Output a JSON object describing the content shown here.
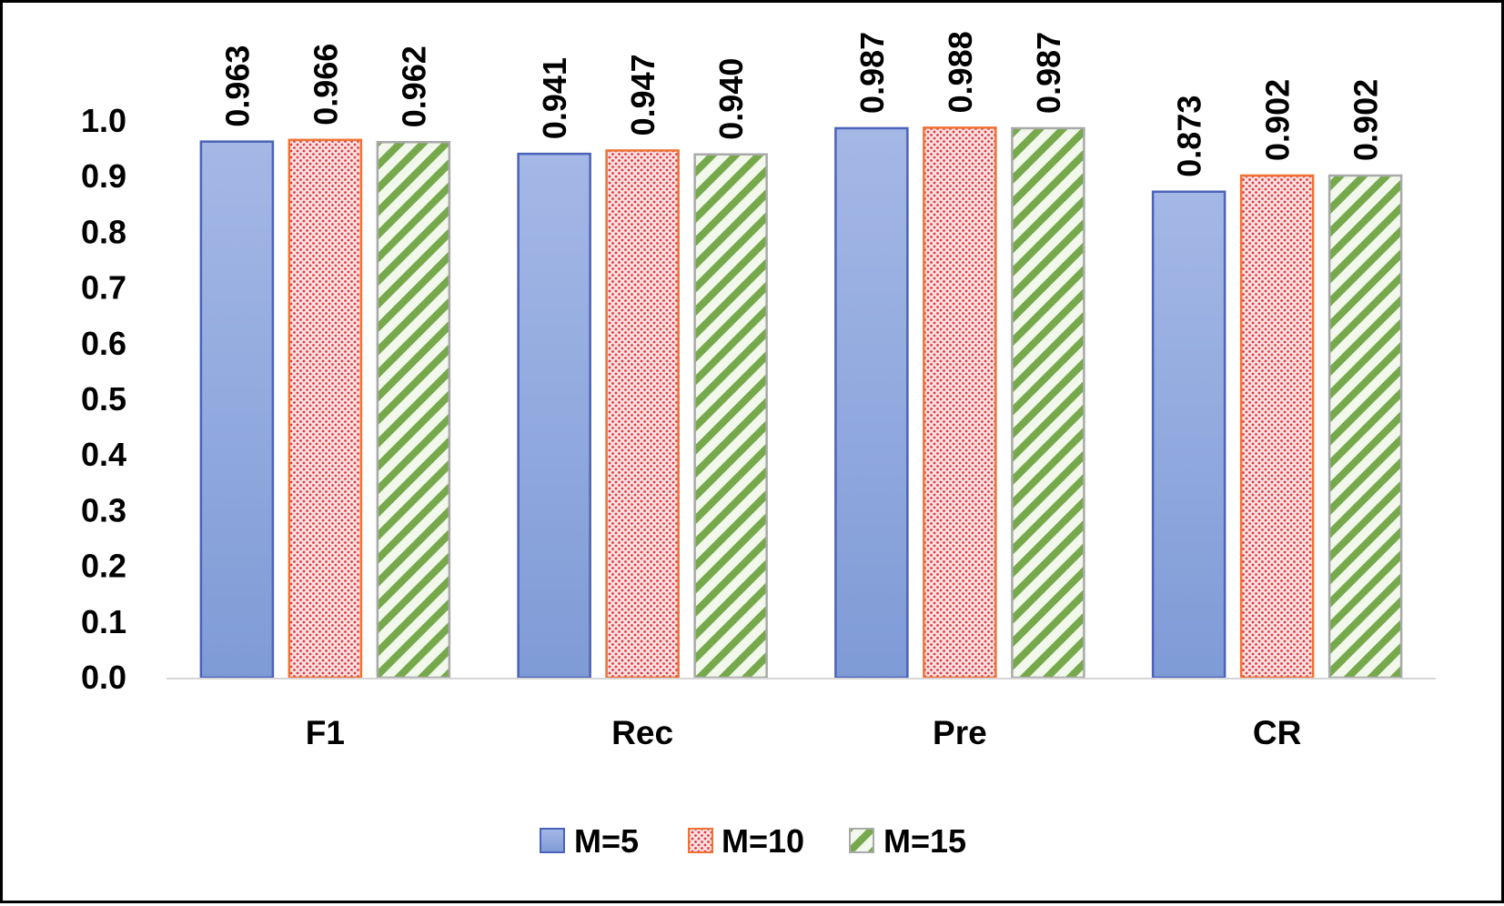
{
  "chart_data": {
    "type": "bar",
    "categories": [
      "F1",
      "Rec",
      "Pre",
      "CR"
    ],
    "series": [
      {
        "name": "M=5",
        "values": [
          0.963,
          0.941,
          0.987,
          0.873
        ],
        "pattern": "solid"
      },
      {
        "name": "M=10",
        "values": [
          0.966,
          0.947,
          0.988,
          0.902
        ],
        "pattern": "dots"
      },
      {
        "name": "M=15",
        "values": [
          0.962,
          0.94,
          0.987,
          0.902
        ],
        "pattern": "diagonal-stripes"
      }
    ],
    "data_labels": [
      [
        "0.963",
        "0.941",
        "0.987",
        "0.873"
      ],
      [
        "0.966",
        "0.947",
        "0.988",
        "0.902"
      ],
      [
        "0.962",
        "0.940",
        "0.987",
        "0.902"
      ]
    ],
    "y_ticks": [
      0.0,
      0.1,
      0.2,
      0.3,
      0.4,
      0.5,
      0.6,
      0.7,
      0.8,
      0.9,
      1.0
    ],
    "y_tick_labels": [
      "0.0",
      "0.1",
      "0.2",
      "0.3",
      "0.4",
      "0.5",
      "0.6",
      "0.7",
      "0.8",
      "0.9",
      "1.0"
    ],
    "ylim": [
      0,
      1.0
    ],
    "title": "",
    "xlabel": "",
    "ylabel": "",
    "grid": false,
    "legend_position": "bottom-center",
    "data_label_orientation": "vertical",
    "colors": {
      "m5_fill": "#8fa8dc",
      "m5_border": "#4a62b8",
      "m10_fill": "#fbe2e2",
      "m10_dot": "#e0383f",
      "m10_border": "#ef7234",
      "m15_fill": "#f3f8ec",
      "m15_stripe": "#76a94b",
      "m15_border": "#a9a9a9",
      "axis": "#d6d6d6"
    }
  }
}
